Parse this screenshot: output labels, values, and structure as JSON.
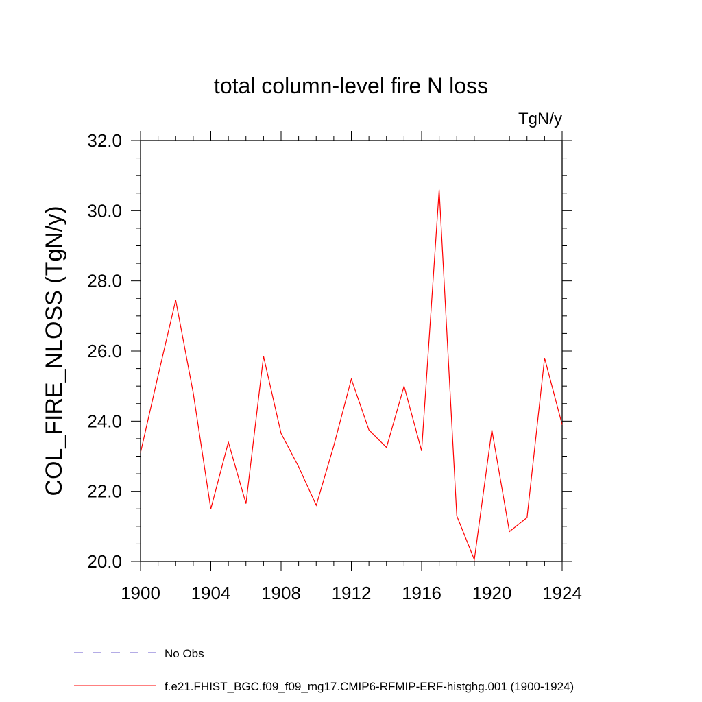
{
  "chart_data": {
    "type": "line",
    "title": "total column-level fire N loss",
    "units_label": "TgN/y",
    "ylabel": "COL_FIRE_NLOSS  (TgN/y)",
    "xlabel": "",
    "xlim": [
      1900,
      1924
    ],
    "ylim": [
      20.0,
      32.0
    ],
    "x_ticks": [
      1900,
      1904,
      1908,
      1912,
      1916,
      1920,
      1924
    ],
    "x_tick_labels": [
      "1900",
      "1904",
      "1908",
      "1912",
      "1916",
      "1920",
      "1924"
    ],
    "y_ticks": [
      20,
      22,
      24,
      26,
      28,
      30,
      32
    ],
    "y_tick_labels": [
      "20.0",
      "22.0",
      "24.0",
      "26.0",
      "28.0",
      "30.0",
      "32.0"
    ],
    "grid": false,
    "legend_placement": "bottom",
    "series": [
      {
        "name": "f.e21.FHIST_BGC.f09_f09_mg17.CMIP6-RFMIP-ERF-histghg.001 (1900-1924)",
        "color": "#ff0000",
        "style": "solid",
        "x": [
          1900,
          1901,
          1902,
          1903,
          1904,
          1905,
          1906,
          1907,
          1908,
          1909,
          1910,
          1911,
          1912,
          1913,
          1914,
          1915,
          1916,
          1917,
          1918,
          1919,
          1920,
          1921,
          1922,
          1923,
          1924
        ],
        "y": [
          23.1,
          25.3,
          27.45,
          24.8,
          21.5,
          23.4,
          21.65,
          25.85,
          23.65,
          22.7,
          21.6,
          23.3,
          25.2,
          23.75,
          23.25,
          25.0,
          23.15,
          30.6,
          21.3,
          20.05,
          23.75,
          20.85,
          21.25,
          25.8,
          23.9
        ]
      }
    ],
    "legend": [
      {
        "label": "No Obs",
        "color": "#6a5acd",
        "style": "dashed"
      },
      {
        "label": "f.e21.FHIST_BGC.f09_f09_mg17.CMIP6-RFMIP-ERF-histghg.001 (1900-1924)",
        "color": "#ff0000",
        "style": "solid"
      }
    ]
  }
}
